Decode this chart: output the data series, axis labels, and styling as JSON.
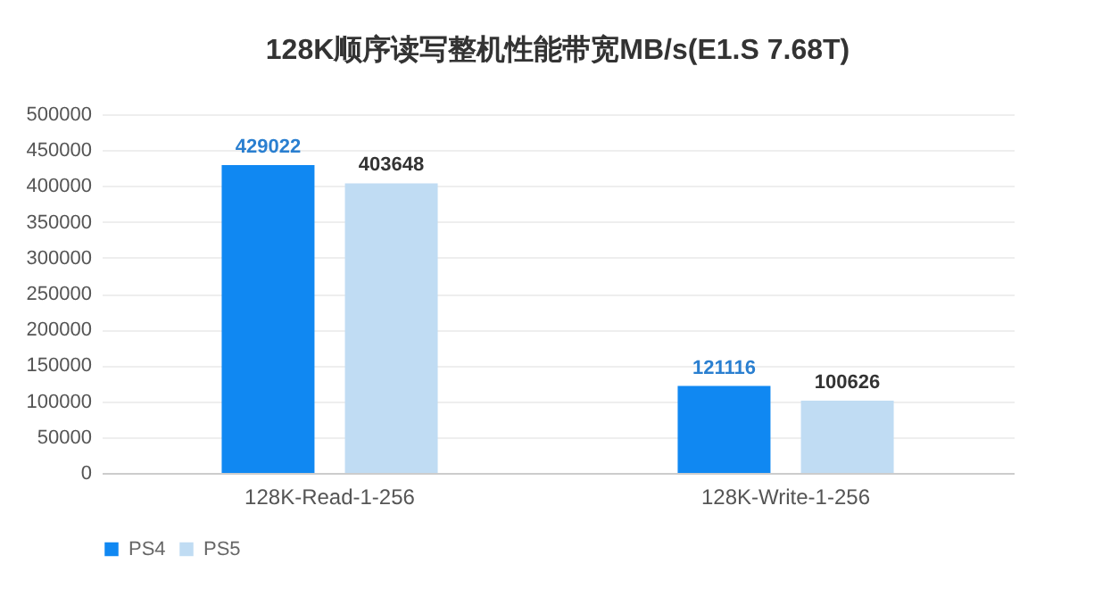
{
  "chart_data": {
    "type": "bar",
    "title": "128K顺序读写整机性能带宽MB/s(E1.S 7.68T)",
    "categories": [
      "128K-Read-1-256",
      "128K-Write-1-256"
    ],
    "series": [
      {
        "name": "PS4",
        "color": "#1088f2",
        "values": [
          429022,
          121116
        ]
      },
      {
        "name": "PS5",
        "color": "#c0dcf3",
        "values": [
          403648,
          100626
        ]
      }
    ],
    "ylim": [
      0,
      500000
    ],
    "yticks": [
      0,
      50000,
      100000,
      150000,
      200000,
      250000,
      300000,
      350000,
      400000,
      450000,
      500000
    ],
    "grid": "y",
    "legend": "bottom",
    "data_labels": true
  }
}
